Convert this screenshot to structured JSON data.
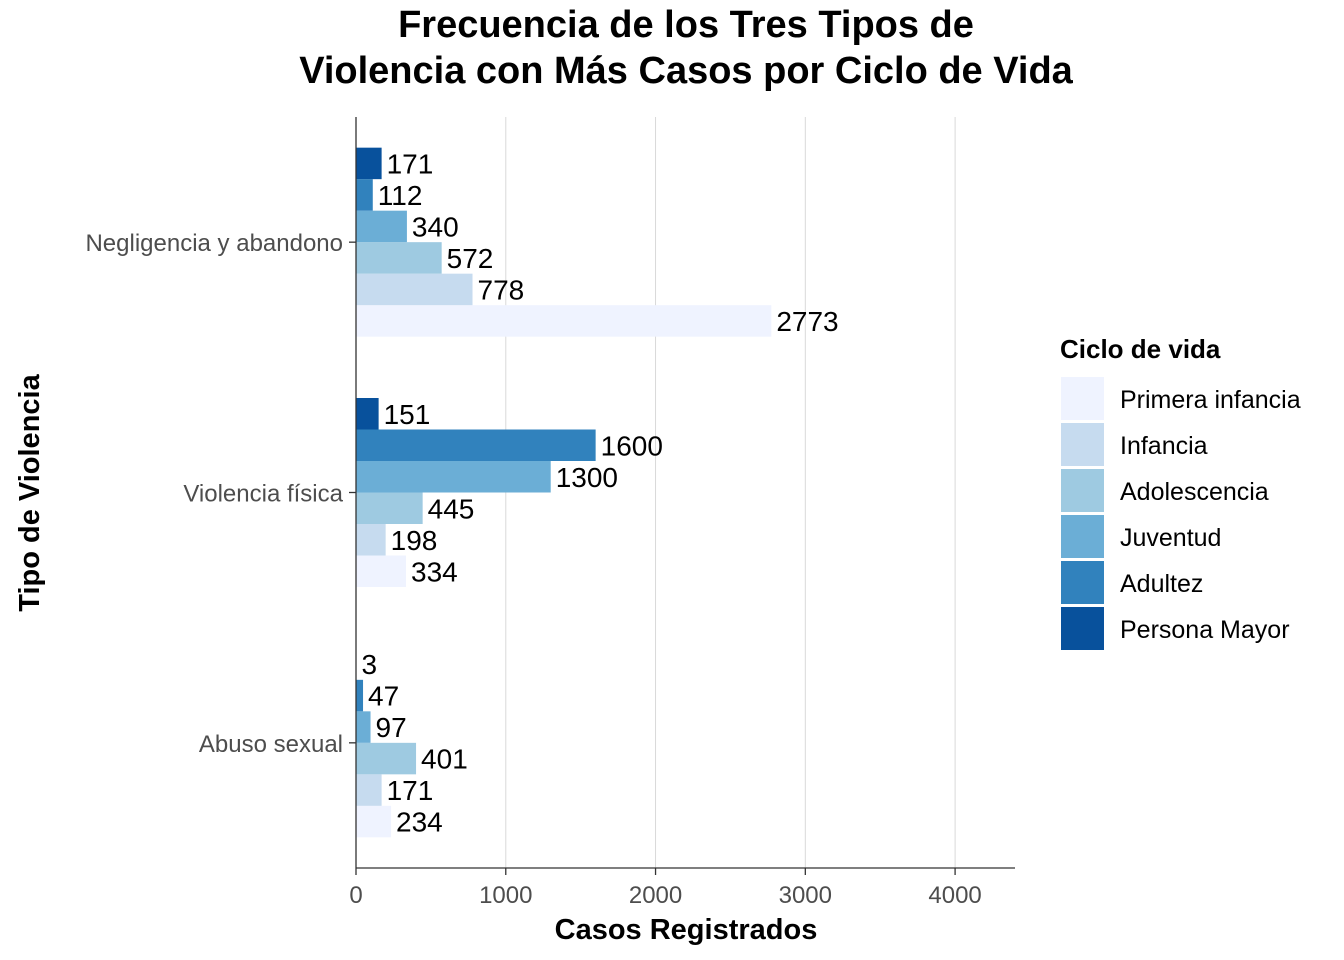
{
  "chart_data": {
    "type": "bar",
    "orientation": "horizontal",
    "title": [
      "Frecuencia de los Tres Tipos de",
      "Violencia con Más Casos por Ciclo de Vida"
    ],
    "xlabel": "Casos Registrados",
    "ylabel": "Tipo de Violencia",
    "xlim": [
      0,
      4400
    ],
    "x_ticks": [
      0,
      1000,
      2000,
      3000,
      4000
    ],
    "categories": [
      "Negligencia y abandono",
      "Violencia física",
      "Abuso sexual"
    ],
    "grid": "vertical major lines",
    "legend_title": "Ciclo de vida",
    "legend_position": "right",
    "series": [
      {
        "name": "Primera infancia",
        "color": "#eff3ff",
        "values": [
          2773,
          334,
          234
        ]
      },
      {
        "name": "Infancia",
        "color": "#c6dbef",
        "values": [
          778,
          198,
          171
        ]
      },
      {
        "name": "Adolescencia",
        "color": "#9ecae1",
        "values": [
          572,
          445,
          401
        ]
      },
      {
        "name": "Juventud",
        "color": "#6baed6",
        "values": [
          340,
          1300,
          97
        ]
      },
      {
        "name": "Adultez",
        "color": "#3182bd",
        "values": [
          112,
          1600,
          47
        ]
      },
      {
        "name": "Persona Mayor",
        "color": "#08519c",
        "values": [
          171,
          151,
          3
        ]
      }
    ]
  }
}
